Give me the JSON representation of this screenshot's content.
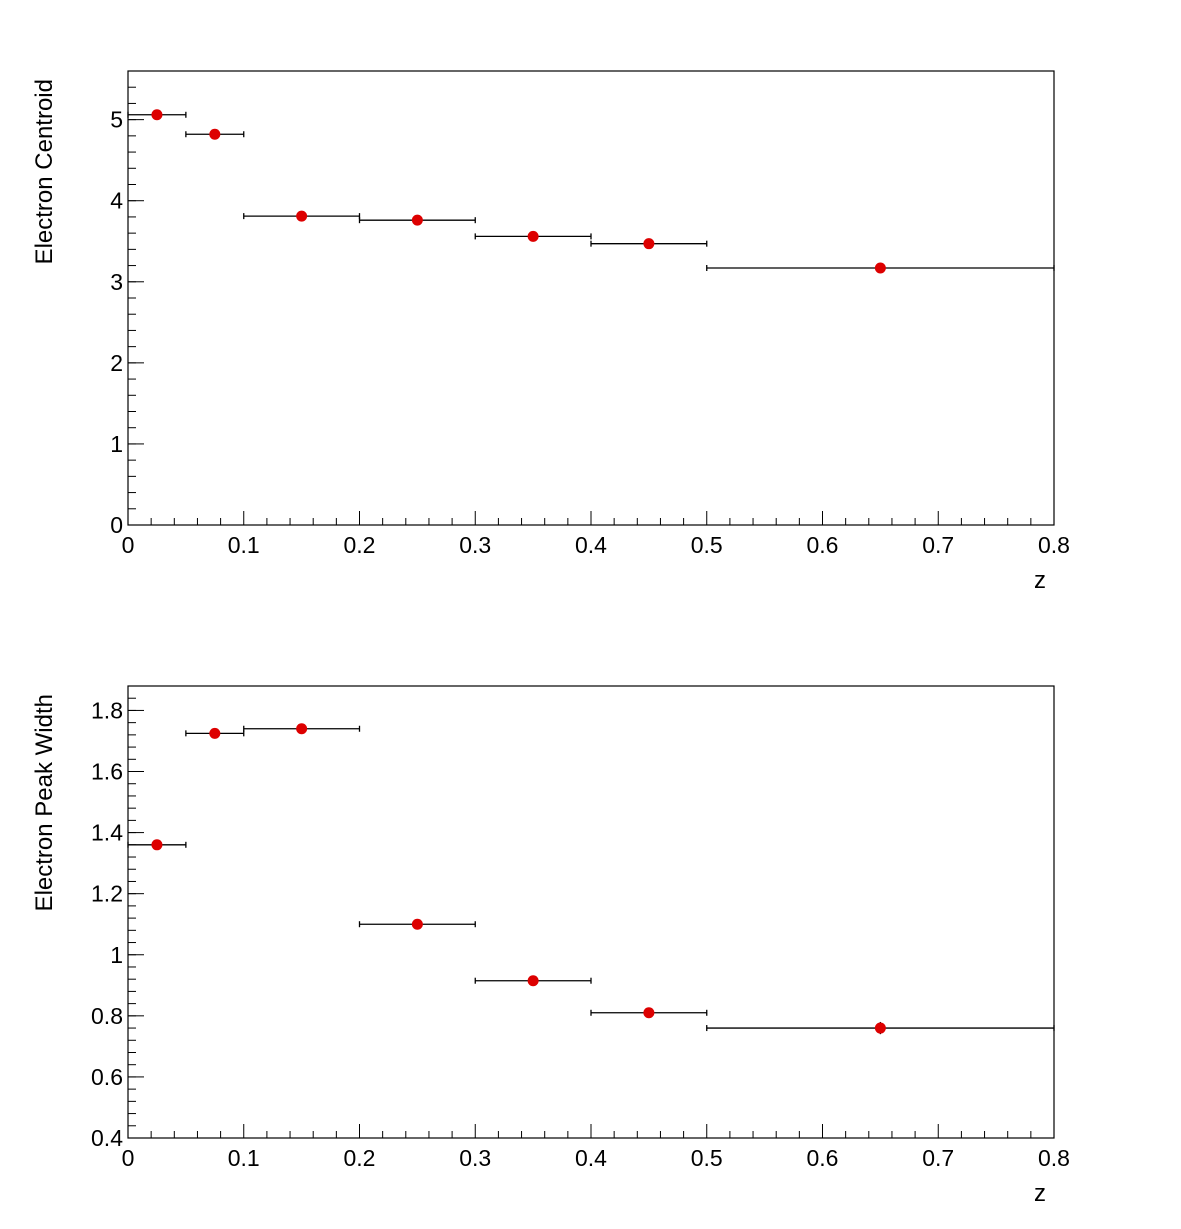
{
  "chart_data": [
    {
      "type": "scatter",
      "title": "",
      "xlabel": "z",
      "ylabel": "Electron Centroid",
      "xlim": [
        0,
        0.8
      ],
      "ylim": [
        0,
        5.6
      ],
      "x_ticks": [
        0,
        0.1,
        0.2,
        0.3,
        0.4,
        0.5,
        0.6,
        0.7,
        0.8
      ],
      "x_tick_labels": [
        "0",
        "0.1",
        "0.2",
        "0.3",
        "0.4",
        "0.5",
        "0.6",
        "0.7",
        "0.8"
      ],
      "y_ticks": [
        0,
        1,
        2,
        3,
        4,
        5
      ],
      "y_tick_labels": [
        "0",
        "1",
        "2",
        "3",
        "4",
        "5"
      ],
      "grid": false,
      "marker_color": "#dd0000",
      "series": [
        {
          "x": [
            0.025,
            0.075,
            0.15,
            0.25,
            0.35,
            0.45,
            0.65
          ],
          "y": [
            5.06,
            4.82,
            3.81,
            3.76,
            3.56,
            3.47,
            3.17
          ],
          "x_err": [
            0.025,
            0.025,
            0.05,
            0.05,
            0.05,
            0.05,
            0.15
          ]
        }
      ]
    },
    {
      "type": "scatter",
      "title": "",
      "xlabel": "z",
      "ylabel": "Electron Peak Width",
      "xlim": [
        0,
        0.8
      ],
      "ylim": [
        0.4,
        1.88
      ],
      "x_ticks": [
        0,
        0.1,
        0.2,
        0.3,
        0.4,
        0.5,
        0.6,
        0.7,
        0.8
      ],
      "x_tick_labels": [
        "0",
        "0.1",
        "0.2",
        "0.3",
        "0.4",
        "0.5",
        "0.6",
        "0.7",
        "0.8"
      ],
      "y_ticks": [
        0.4,
        0.6,
        0.8,
        1.0,
        1.2,
        1.4,
        1.6,
        1.8
      ],
      "y_tick_labels": [
        "0.4",
        "0.6",
        "0.8",
        "1",
        "1.2",
        "1.4",
        "1.6",
        "1.8"
      ],
      "grid": false,
      "marker_color": "#dd0000",
      "series": [
        {
          "x": [
            0.025,
            0.075,
            0.15,
            0.25,
            0.35,
            0.45,
            0.65
          ],
          "y": [
            1.36,
            1.725,
            1.74,
            1.1,
            0.915,
            0.81,
            0.76
          ],
          "x_err": [
            0.025,
            0.025,
            0.05,
            0.05,
            0.05,
            0.05,
            0.15
          ],
          "y_err": [
            0,
            0,
            0,
            0,
            0,
            0,
            0.02
          ]
        }
      ]
    }
  ]
}
